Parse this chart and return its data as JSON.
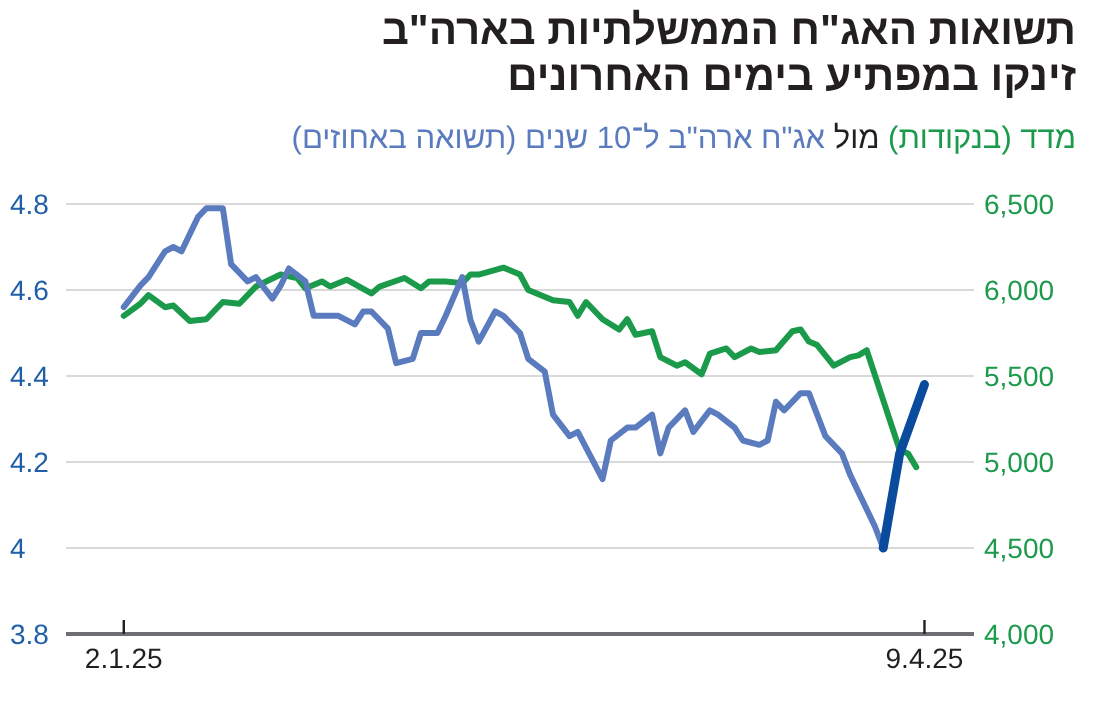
{
  "chart_data": {
    "type": "line",
    "title": "תשואות האג\"ח הממשלתיות בארה\"ב\nזינקו במפתיע בימים האחרונים",
    "subtitle": "מול",
    "legend": "top",
    "grid": "y",
    "xlim": [
      "2024-12-26",
      "2025-04-15"
    ],
    "xticks": [
      {
        "value": "2025-01-02",
        "label": "2.1.25"
      },
      {
        "value": "2025-04-09",
        "label": "9.4.25"
      }
    ],
    "ylim": [
      3.8,
      4.8
    ],
    "yticks": [
      3.8,
      {
        "value": 4,
        "label": "4"
      },
      4.2,
      4.4,
      4.6,
      4.8
    ],
    "y2lim": [
      4000,
      6500
    ],
    "y2ticks": [
      {
        "value": 4000,
        "label": "4,000"
      },
      {
        "value": 4500,
        "label": "4,500"
      },
      {
        "value": 5000,
        "label": "5,000"
      },
      {
        "value": 5500,
        "label": "5,500"
      },
      {
        "value": 6000,
        "label": "6,000"
      },
      {
        "value": 6500,
        "label": "6,500"
      }
    ],
    "series": [
      {
        "name": "מדד (בנקודות)",
        "axis": "y2",
        "color": "#1a9a4a",
        "x": [
          "2025-01-02",
          "2025-01-04",
          "2025-01-05",
          "2025-01-07",
          "2025-01-08",
          "2025-01-10",
          "2025-01-12",
          "2025-01-14",
          "2025-01-16",
          "2025-01-18",
          "2025-01-21",
          "2025-01-23",
          "2025-01-24",
          "2025-01-26",
          "2025-01-27",
          "2025-01-29",
          "2025-02-01",
          "2025-02-02",
          "2025-02-05",
          "2025-02-07",
          "2025-02-08",
          "2025-02-10",
          "2025-02-12",
          "2025-02-13",
          "2025-02-14",
          "2025-02-17",
          "2025-02-19",
          "2025-02-20",
          "2025-02-23",
          "2025-02-25",
          "2025-02-26",
          "2025-02-27",
          "2025-03-01",
          "2025-03-03",
          "2025-03-04",
          "2025-03-05",
          "2025-03-07",
          "2025-03-08",
          "2025-03-10",
          "2025-03-11",
          "2025-03-13",
          "2025-03-14",
          "2025-03-16",
          "2025-03-17",
          "2025-03-19",
          "2025-03-20",
          "2025-03-22",
          "2025-03-24",
          "2025-03-25",
          "2025-03-26",
          "2025-03-27",
          "2025-03-29",
          "2025-03-31",
          "2025-04-01",
          "2025-04-02",
          "2025-04-04",
          "2025-04-06",
          "2025-04-07",
          "2025-04-08"
        ],
        "values": [
          5850,
          5920,
          5970,
          5900,
          5910,
          5820,
          5830,
          5930,
          5920,
          6020,
          6090,
          6070,
          6010,
          6050,
          6020,
          6060,
          5980,
          6020,
          6070,
          6010,
          6050,
          6050,
          6040,
          6090,
          6090,
          6130,
          6090,
          6000,
          5940,
          5930,
          5850,
          5930,
          5830,
          5770,
          5830,
          5740,
          5760,
          5610,
          5560,
          5580,
          5510,
          5630,
          5660,
          5610,
          5660,
          5640,
          5650,
          5760,
          5770,
          5700,
          5680,
          5560,
          5610,
          5620,
          5650,
          5360,
          5070,
          5050,
          4970
        ]
      },
      {
        "name": "אג\"ח ארה\"ב ל־10 שנים (תשואה באחוזים)",
        "axis": "y",
        "color": "#5b7bbf",
        "x": [
          "2025-01-02",
          "2025-01-04",
          "2025-01-05",
          "2025-01-07",
          "2025-01-08",
          "2025-01-09",
          "2025-01-11",
          "2025-01-12",
          "2025-01-14",
          "2025-01-15",
          "2025-01-17",
          "2025-01-18",
          "2025-01-20",
          "2025-01-21",
          "2025-01-22",
          "2025-01-24",
          "2025-01-25",
          "2025-01-28",
          "2025-01-30",
          "2025-01-31",
          "2025-02-01",
          "2025-02-03",
          "2025-02-04",
          "2025-02-06",
          "2025-02-07",
          "2025-02-09",
          "2025-02-10",
          "2025-02-12",
          "2025-02-13",
          "2025-02-14",
          "2025-02-16",
          "2025-02-17",
          "2025-02-19",
          "2025-02-20",
          "2025-02-22",
          "2025-02-23",
          "2025-02-25",
          "2025-02-26",
          "2025-03-01",
          "2025-03-02",
          "2025-03-04",
          "2025-03-05",
          "2025-03-07",
          "2025-03-08",
          "2025-03-09",
          "2025-03-11",
          "2025-03-12",
          "2025-03-14",
          "2025-03-15",
          "2025-03-17",
          "2025-03-18",
          "2025-03-20",
          "2025-03-21",
          "2025-03-22",
          "2025-03-23",
          "2025-03-25",
          "2025-03-26",
          "2025-03-28",
          "2025-03-30",
          "2025-03-31",
          "2025-04-01",
          "2025-04-03",
          "2025-04-04"
        ],
        "values": [
          4.56,
          4.61,
          4.63,
          4.69,
          4.7,
          4.69,
          4.77,
          4.79,
          4.79,
          4.66,
          4.62,
          4.63,
          4.58,
          4.61,
          4.65,
          4.62,
          4.54,
          4.54,
          4.52,
          4.55,
          4.55,
          4.51,
          4.43,
          4.44,
          4.5,
          4.5,
          4.54,
          4.63,
          4.53,
          4.48,
          4.55,
          4.54,
          4.5,
          4.44,
          4.41,
          4.31,
          4.26,
          4.27,
          4.16,
          4.25,
          4.28,
          4.28,
          4.31,
          4.22,
          4.28,
          4.32,
          4.27,
          4.32,
          4.31,
          4.28,
          4.25,
          4.24,
          4.25,
          4.34,
          4.32,
          4.36,
          4.36,
          4.26,
          4.22,
          4.17,
          4.13,
          4.05,
          4.0
        ]
      },
      {
        "axis": "y",
        "color": "#0b4b9e",
        "x": [
          "2025-04-04",
          "2025-04-06",
          "2025-04-09"
        ],
        "values": [
          4.0,
          4.22,
          4.38
        ]
      }
    ]
  }
}
